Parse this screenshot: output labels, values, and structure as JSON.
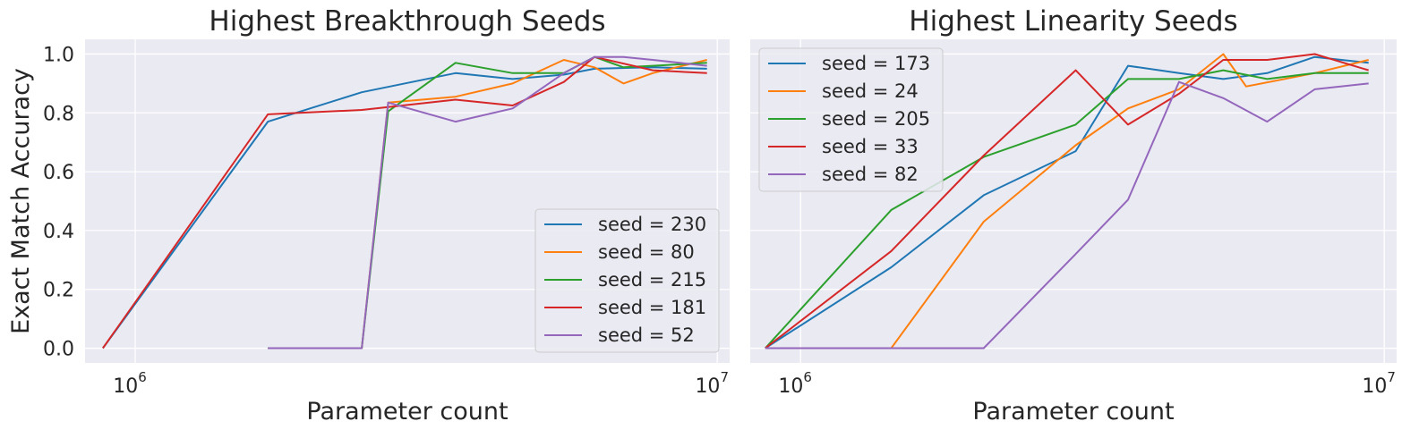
{
  "chart_data": [
    {
      "type": "line",
      "title": "Highest Breakthrough Seeds",
      "xlabel": "Parameter count",
      "ylabel": "Exact Match Accuracy",
      "xscale": "log",
      "xlim": [
        820000,
        10500000
      ],
      "ylim": [
        -0.05,
        1.05
      ],
      "yticks": [
        0.0,
        0.2,
        0.4,
        0.6,
        0.8,
        1.0
      ],
      "ytick_labels": [
        "0.0",
        "0.2",
        "0.4",
        "0.6",
        "0.8",
        "1.0"
      ],
      "xticks": [
        1000000,
        10000000
      ],
      "xtick_labels": [
        {
          "base": "10",
          "exp": "6"
        },
        {
          "base": "10",
          "exp": "7"
        }
      ],
      "legend_position": "lower-right",
      "grid": true,
      "series": [
        {
          "name": "seed = 230",
          "color": "#1f77b4",
          "x": [
            880000,
            1690000,
            2450000,
            3550000,
            4450000,
            5450000,
            6150000,
            7750000,
            9600000
          ],
          "y": [
            0.0,
            0.77,
            0.87,
            0.935,
            0.915,
            0.93,
            0.95,
            0.955,
            0.95
          ]
        },
        {
          "name": "seed = 80",
          "color": "#ff7f0e",
          "x": [
            1690000,
            2450000,
            2720000,
            3550000,
            4450000,
            5450000,
            6150000,
            6900000,
            7750000,
            9600000
          ],
          "y": [
            0.0,
            0.0,
            0.835,
            0.855,
            0.9,
            0.98,
            0.955,
            0.9,
            0.935,
            0.98
          ]
        },
        {
          "name": "seed = 215",
          "color": "#2ca02c",
          "x": [
            1690000,
            2450000,
            2720000,
            3550000,
            4450000,
            5450000,
            6150000,
            6900000,
            7750000,
            9600000
          ],
          "y": [
            0.0,
            0.0,
            0.805,
            0.97,
            0.935,
            0.935,
            0.99,
            0.955,
            0.96,
            0.97
          ]
        },
        {
          "name": "seed = 181",
          "color": "#d62728",
          "x": [
            880000,
            1690000,
            2450000,
            3550000,
            4450000,
            5450000,
            6150000,
            7750000,
            9600000
          ],
          "y": [
            0.0,
            0.795,
            0.81,
            0.845,
            0.825,
            0.905,
            0.99,
            0.945,
            0.935
          ]
        },
        {
          "name": "seed = 52",
          "color": "#9467bd",
          "x": [
            1690000,
            2450000,
            2720000,
            3550000,
            4450000,
            5450000,
            6150000,
            6900000,
            7750000,
            9600000
          ],
          "y": [
            0.0,
            0.0,
            0.835,
            0.77,
            0.815,
            0.935,
            0.99,
            0.99,
            0.98,
            0.96
          ]
        }
      ]
    },
    {
      "type": "line",
      "title": "Highest Linearity Seeds",
      "xlabel": "Parameter count",
      "ylabel": "",
      "xscale": "log",
      "xlim": [
        820000,
        10500000
      ],
      "ylim": [
        -0.05,
        1.05
      ],
      "yticks": [
        0.0,
        0.2,
        0.4,
        0.6,
        0.8,
        1.0
      ],
      "ytick_labels": [
        "",
        "",
        "",
        "",
        "",
        ""
      ],
      "xticks": [
        1000000,
        10000000
      ],
      "xtick_labels": [
        {
          "base": "10",
          "exp": "6"
        },
        {
          "base": "10",
          "exp": "7"
        }
      ],
      "legend_position": "upper-left",
      "grid": true,
      "series": [
        {
          "name": "seed = 173",
          "color": "#1f77b4",
          "x": [
            870000,
            1430000,
            2060000,
            2960000,
            3640000,
            4450000,
            5300000,
            6300000,
            7600000,
            9400000
          ],
          "y": [
            0.0,
            0.275,
            0.52,
            0.67,
            0.96,
            0.935,
            0.915,
            0.935,
            0.99,
            0.97
          ]
        },
        {
          "name": "seed = 24",
          "color": "#ff7f0e",
          "x": [
            1430000,
            2060000,
            2960000,
            3640000,
            4450000,
            5300000,
            5800000,
            7600000,
            9400000
          ],
          "y": [
            0.0,
            0.43,
            0.69,
            0.815,
            0.88,
            1.0,
            0.89,
            0.935,
            0.98
          ]
        },
        {
          "name": "seed = 205",
          "color": "#2ca02c",
          "x": [
            870000,
            1430000,
            2060000,
            2960000,
            3640000,
            4450000,
            5300000,
            6300000,
            7600000,
            9400000
          ],
          "y": [
            0.0,
            0.47,
            0.65,
            0.76,
            0.915,
            0.915,
            0.945,
            0.915,
            0.935,
            0.935
          ]
        },
        {
          "name": "seed = 33",
          "color": "#d62728",
          "x": [
            870000,
            1430000,
            2060000,
            2960000,
            3640000,
            4450000,
            5300000,
            6300000,
            7600000,
            9400000
          ],
          "y": [
            0.0,
            0.33,
            0.655,
            0.945,
            0.76,
            0.865,
            0.98,
            0.98,
            1.0,
            0.945
          ]
        },
        {
          "name": "seed = 82",
          "color": "#9467bd",
          "x": [
            870000,
            2060000,
            2960000,
            3640000,
            4450000,
            5300000,
            6300000,
            7600000,
            9400000
          ],
          "y": [
            0.0,
            0.0,
            0.32,
            0.505,
            0.905,
            0.85,
            0.77,
            0.88,
            0.9
          ]
        }
      ]
    }
  ]
}
